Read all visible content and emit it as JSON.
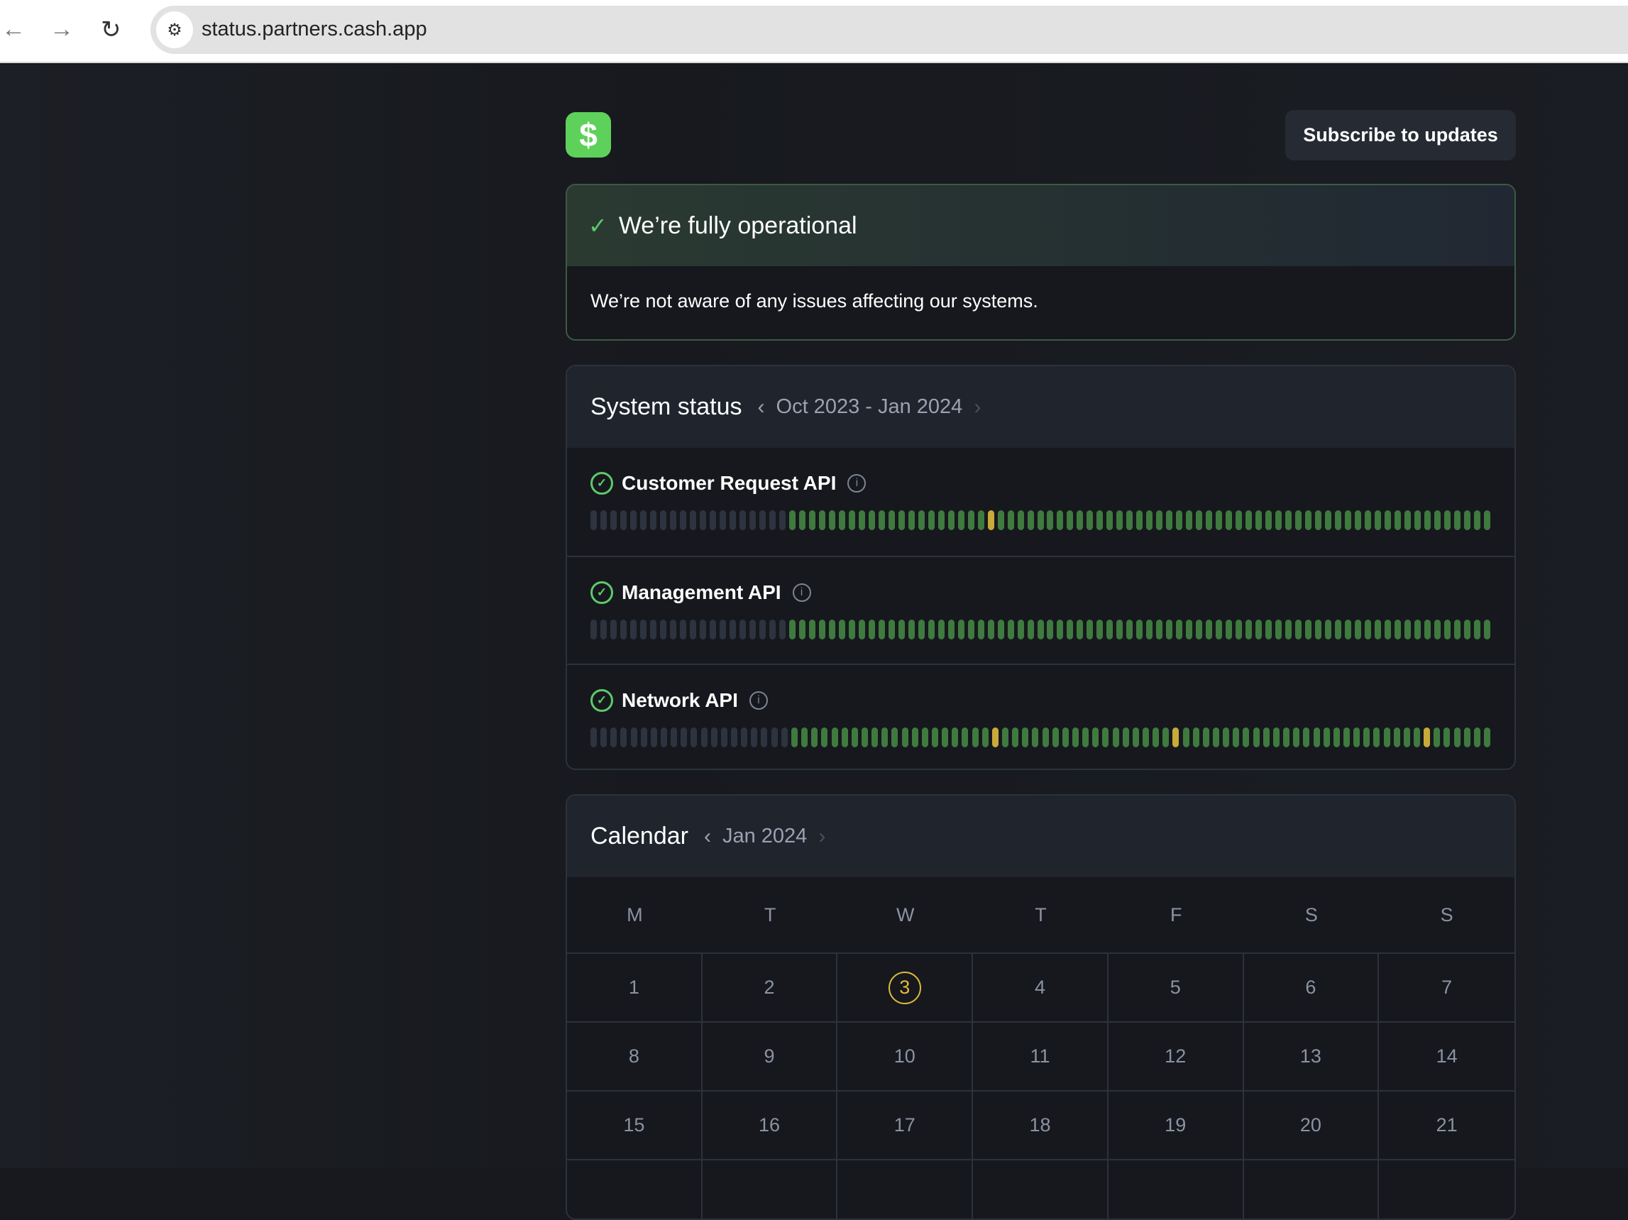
{
  "browser": {
    "url": "status.partners.cash.app",
    "back_icon": "arrow-left",
    "forward_icon": "arrow-right",
    "reload_icon": "reload"
  },
  "header": {
    "logo_glyph": "$",
    "subscribe_label": "Subscribe to updates"
  },
  "banner": {
    "title": "We’re fully operational",
    "message": "We’re not aware of any issues affecting our systems."
  },
  "system_status": {
    "title": "System status",
    "range": "Oct 2023 - Jan 2024",
    "legend": {
      "n": "#2d3440",
      "g": "#3f7a3f",
      "y": "#c9a93a"
    },
    "services": [
      {
        "name": "Customer Request API",
        "status": "operational",
        "days": "nnnnnnnnnnnnnnnnnnnnggggggggggggggggggggygggggggggggggggggggggggggggggggggggggggggggggggggg"
      },
      {
        "name": "Management API",
        "status": "operational",
        "days": "nnnnnnnnnnnnnnnnnnnnggggggggggggggggggggggggggggggggggggggggggggggggggggggggggggggggggggggg"
      },
      {
        "name": "Network API",
        "status": "operational",
        "days": "nnnnnnnnnnnnnnnnnnnnggggggggggggggggggggygggggggggggggggggyggggggggggggggggggggggggygggggg"
      }
    ]
  },
  "calendar": {
    "title": "Calendar",
    "month": "Jan 2024",
    "weekdays": [
      "M",
      "T",
      "W",
      "T",
      "F",
      "S",
      "S"
    ],
    "today": "3",
    "weeks": [
      [
        "1",
        "2",
        "3",
        "4",
        "5",
        "6",
        "7"
      ],
      [
        "8",
        "9",
        "10",
        "11",
        "12",
        "13",
        "14"
      ],
      [
        "15",
        "16",
        "17",
        "18",
        "19",
        "20",
        "21"
      ],
      [
        "",
        "",
        "",
        "",
        "",
        "",
        ""
      ]
    ]
  }
}
